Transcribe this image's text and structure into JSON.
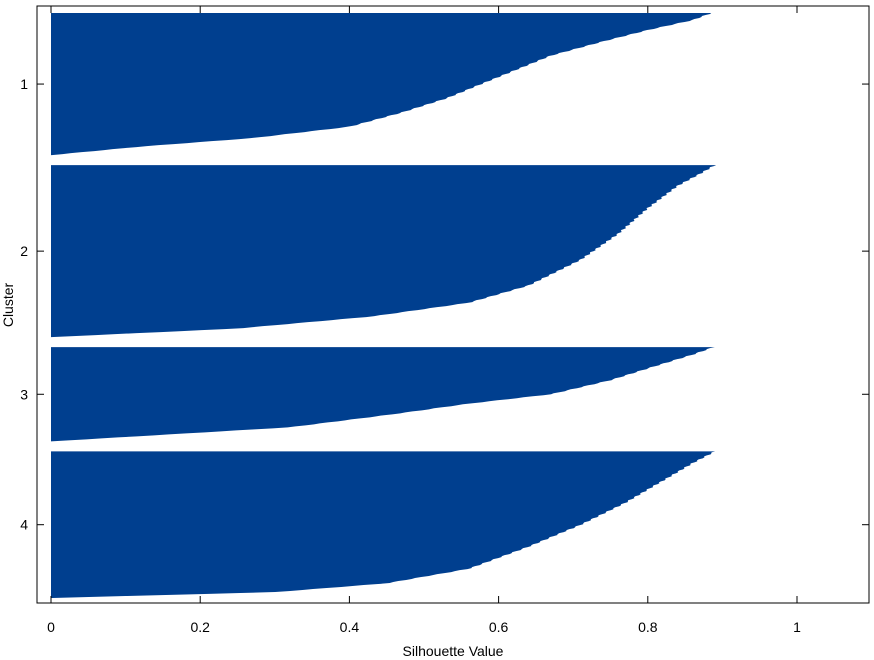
{
  "chart_data": {
    "type": "bar",
    "orientation": "horizontal",
    "xlabel": "Silhouette Value",
    "ylabel": "Cluster",
    "xlim": [
      -0.02,
      1.1
    ],
    "xticks": [
      0,
      0.2,
      0.4,
      0.6,
      0.8,
      1
    ],
    "xtick_labels": [
      "0",
      "0.2",
      "0.4",
      "0.6",
      "0.8",
      "1"
    ],
    "grid": false,
    "bar_color": "#003f8f",
    "clusters": [
      {
        "label": "1",
        "count": 95,
        "max": 0.885,
        "min": 0.0,
        "profile": [
          [
            0,
            0.885
          ],
          [
            0.05,
            0.86
          ],
          [
            0.12,
            0.8
          ],
          [
            0.2,
            0.74
          ],
          [
            0.3,
            0.67
          ],
          [
            0.45,
            0.6
          ],
          [
            0.6,
            0.53
          ],
          [
            0.7,
            0.47
          ],
          [
            0.8,
            0.4
          ],
          [
            0.88,
            0.27
          ],
          [
            0.94,
            0.12
          ],
          [
            0.98,
            0.04
          ],
          [
            1,
            0.0
          ]
        ]
      },
      {
        "label": "2",
        "count": 115,
        "max": 0.89,
        "min": 0.0,
        "profile": [
          [
            0,
            0.89
          ],
          [
            0.05,
            0.87
          ],
          [
            0.12,
            0.84
          ],
          [
            0.25,
            0.8
          ],
          [
            0.4,
            0.76
          ],
          [
            0.55,
            0.71
          ],
          [
            0.7,
            0.64
          ],
          [
            0.8,
            0.56
          ],
          [
            0.88,
            0.43
          ],
          [
            0.95,
            0.25
          ],
          [
            1,
            0.0
          ]
        ]
      },
      {
        "label": "3",
        "count": 63,
        "max": 0.888,
        "min": 0.0,
        "profile": [
          [
            0,
            0.888
          ],
          [
            0.08,
            0.86
          ],
          [
            0.2,
            0.81
          ],
          [
            0.35,
            0.75
          ],
          [
            0.5,
            0.67
          ],
          [
            0.6,
            0.56
          ],
          [
            0.72,
            0.45
          ],
          [
            0.85,
            0.32
          ],
          [
            0.93,
            0.15
          ],
          [
            1,
            0.0
          ]
        ]
      },
      {
        "label": "4",
        "count": 98,
        "max": 0.89,
        "min": 0.0,
        "profile": [
          [
            0,
            0.89
          ],
          [
            0.08,
            0.86
          ],
          [
            0.2,
            0.82
          ],
          [
            0.35,
            0.77
          ],
          [
            0.5,
            0.71
          ],
          [
            0.65,
            0.64
          ],
          [
            0.8,
            0.56
          ],
          [
            0.9,
            0.45
          ],
          [
            0.96,
            0.3
          ],
          [
            1,
            0.0
          ]
        ]
      }
    ]
  }
}
